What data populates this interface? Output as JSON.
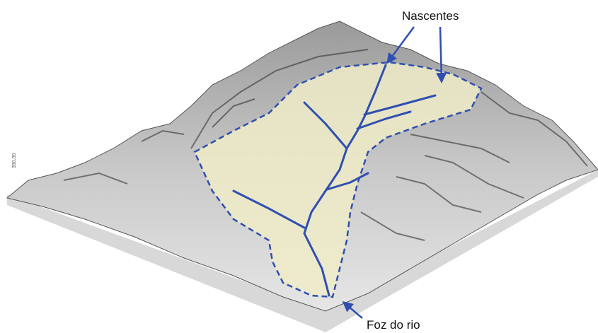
{
  "labels": {
    "sources": "Nascentes",
    "mouth": "Foz do rio",
    "z_axis": "350,00"
  }
}
